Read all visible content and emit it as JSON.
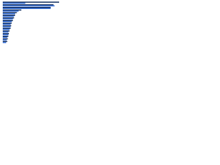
{
  "chart_data": {
    "type": "bar",
    "orientation": "horizontal",
    "categories": [
      null,
      null,
      null,
      null,
      null,
      null,
      null,
      null,
      null,
      null,
      null,
      null,
      null,
      null,
      null,
      null
    ],
    "series": [
      {
        "color": "#0d2a5c",
        "values": [
          100,
          90,
          85,
          33,
          25,
          22,
          20,
          18,
          16,
          15,
          14,
          12,
          11,
          10,
          9,
          8
        ]
      },
      {
        "color": "#2f6bd8",
        "values": [
          40,
          92,
          85,
          28,
          22,
          20,
          18,
          16,
          14,
          14,
          12,
          10,
          10,
          8,
          7,
          6
        ]
      }
    ],
    "xlim": [
      0,
      100
    ]
  }
}
